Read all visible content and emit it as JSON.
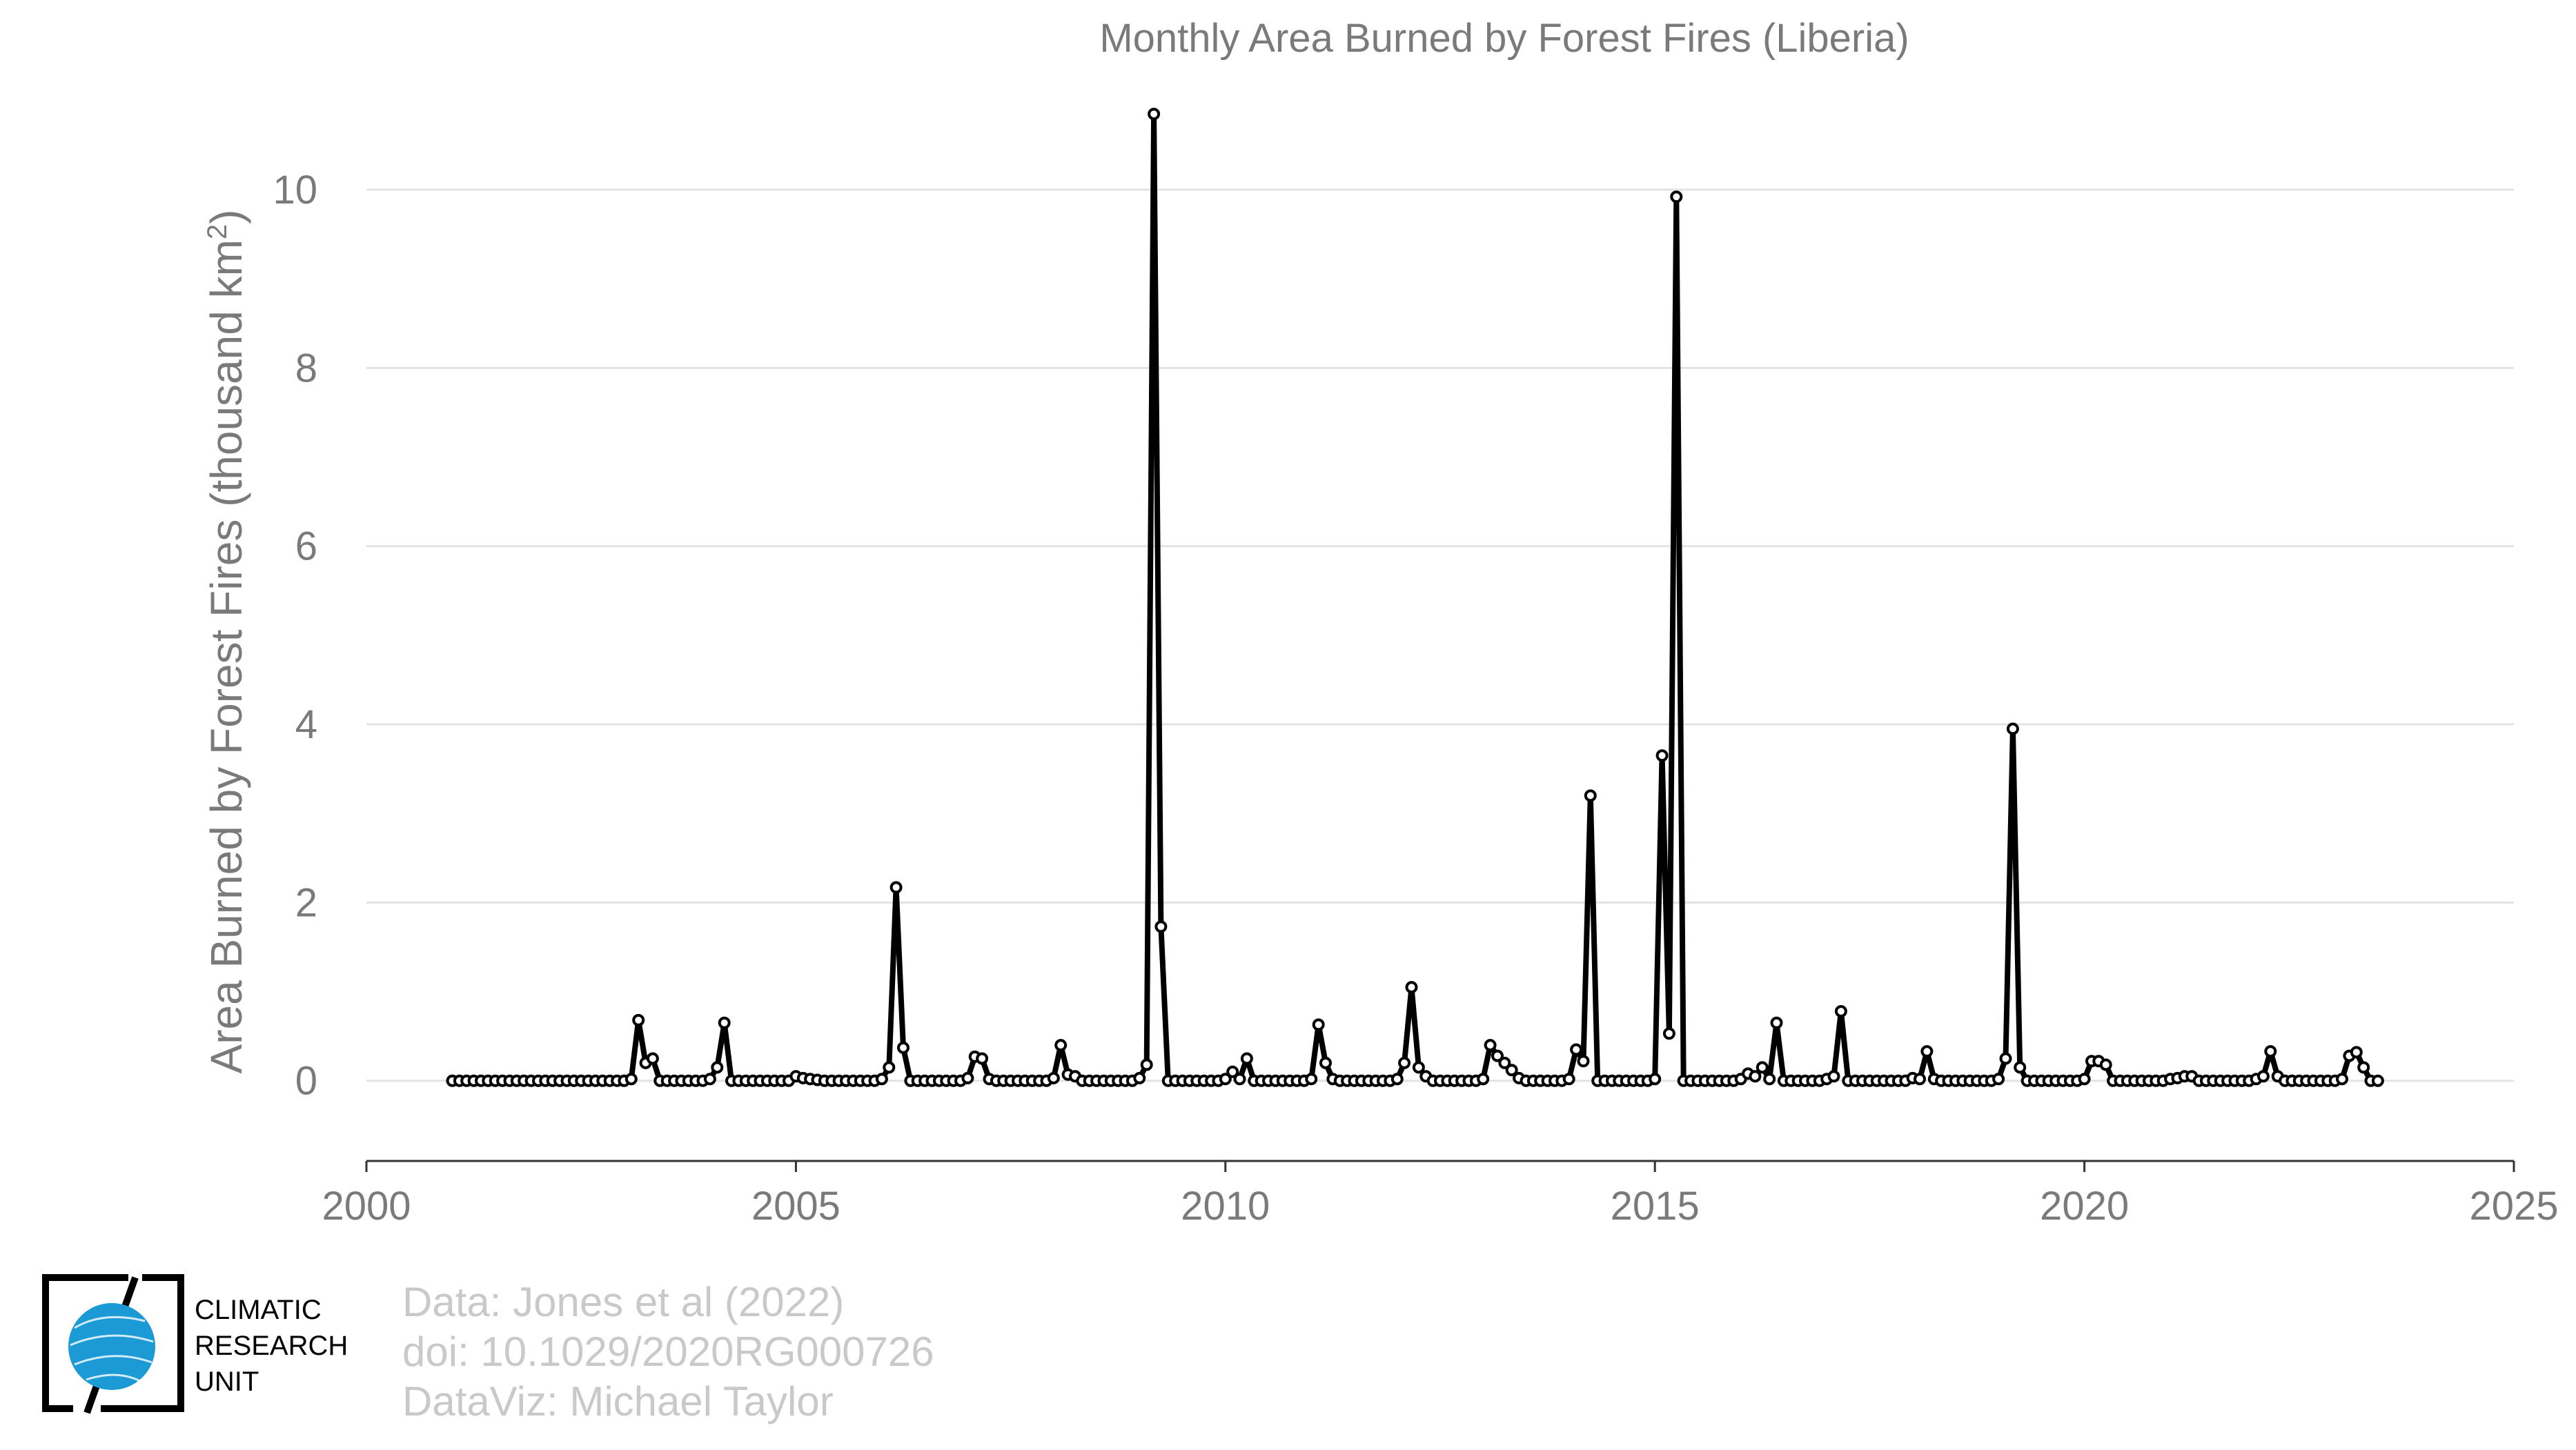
{
  "chart_data": {
    "type": "line",
    "title": "Monthly Area Burned by Forest Fires (Liberia)",
    "ylabel": "Area Burned by Forest Fires (thousand km",
    "ylabel_sup": "2",
    "ylabel_close": ")",
    "xlabel": "",
    "xlim": [
      2000,
      2025
    ],
    "ylim": [
      -0.9,
      11.2
    ],
    "x_ticks": [
      2000,
      2005,
      2010,
      2015,
      2020,
      2025
    ],
    "y_ticks": [
      0,
      2,
      4,
      6,
      8,
      10
    ],
    "grid": true,
    "start_year": 2001,
    "start_month": 1,
    "series": [
      {
        "values": [
          0,
          0,
          0,
          0,
          0,
          0,
          0,
          0,
          0,
          0,
          0,
          0,
          0,
          0,
          0,
          0,
          0,
          0,
          0,
          0,
          0,
          0,
          0,
          0,
          0,
          0.02,
          0.68,
          0.2,
          0.25,
          0,
          0,
          0,
          0,
          0,
          0,
          0,
          0.02,
          0.15,
          0.65,
          0,
          0,
          0,
          0,
          0,
          0,
          0,
          0,
          0,
          0.05,
          0.03,
          0.02,
          0.01,
          0,
          0,
          0,
          0,
          0,
          0,
          0,
          0,
          0.02,
          0.15,
          2.17,
          0.37,
          0,
          0,
          0,
          0,
          0,
          0,
          0,
          0,
          0.03,
          0.27,
          0.25,
          0.02,
          0,
          0,
          0,
          0,
          0,
          0,
          0,
          0,
          0.03,
          0.4,
          0.07,
          0.05,
          0,
          0,
          0,
          0,
          0,
          0,
          0,
          0,
          0.03,
          0.18,
          10.85,
          1.73,
          0,
          0,
          0,
          0,
          0,
          0,
          0,
          0,
          0.02,
          0.1,
          0.02,
          0.25,
          0,
          0,
          0,
          0,
          0,
          0,
          0,
          0,
          0.02,
          0.63,
          0.2,
          0.02,
          0,
          0,
          0,
          0,
          0,
          0,
          0,
          0,
          0.02,
          0.2,
          1.05,
          0.15,
          0.05,
          0,
          0,
          0,
          0,
          0,
          0,
          0,
          0.02,
          0.4,
          0.28,
          0.2,
          0.12,
          0.03,
          0,
          0,
          0,
          0,
          0,
          0,
          0.02,
          0.35,
          0.22,
          3.2,
          0,
          0,
          0,
          0,
          0,
          0,
          0,
          0,
          0.02,
          3.65,
          0.53,
          9.92,
          0,
          0,
          0,
          0,
          0,
          0,
          0,
          0,
          0.02,
          0.08,
          0.05,
          0.15,
          0.02,
          0.65,
          0,
          0,
          0,
          0,
          0,
          0,
          0.02,
          0.05,
          0.78,
          0,
          0,
          0,
          0,
          0,
          0,
          0,
          0,
          0,
          0.03,
          0.02,
          0.33,
          0.02,
          0,
          0,
          0,
          0,
          0,
          0,
          0,
          0,
          0.02,
          0.25,
          3.95,
          0.15,
          0,
          0,
          0,
          0,
          0,
          0,
          0,
          0,
          0.02,
          0.22,
          0.22,
          0.18,
          0,
          0,
          0,
          0,
          0,
          0,
          0,
          0,
          0.02,
          0.03,
          0.05,
          0.05,
          0,
          0,
          0,
          0,
          0,
          0,
          0,
          0,
          0.02,
          0.05,
          0.33,
          0.05,
          0,
          0,
          0,
          0,
          0,
          0,
          0,
          0,
          0.02,
          0.28,
          0.32,
          0.15,
          0,
          0
        ]
      }
    ]
  },
  "credits": {
    "line1": "Data: Jones et al (2022)",
    "line2": "doi: 10.1029/2020RG000726",
    "line3": "DataViz: Michael Taylor"
  },
  "logo": {
    "line1": "CLIMATIC",
    "line2": "RESEARCH",
    "line3": "UNIT",
    "globe_color": "#1b9ad6"
  }
}
